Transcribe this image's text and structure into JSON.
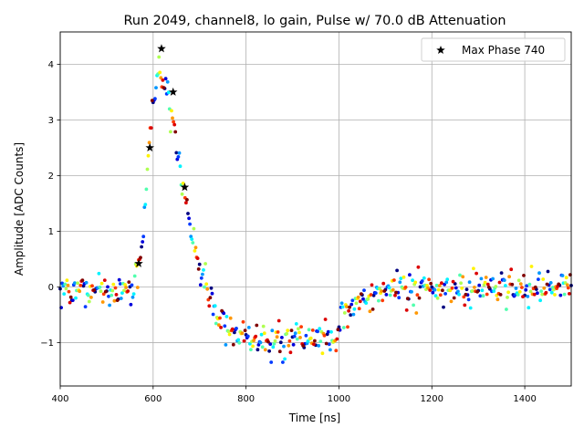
{
  "chart_data": {
    "type": "scatter",
    "title": "Run 2049, channel8, lo gain, Pulse w/ 70.0 dB Attenuation",
    "xlabel": "Time [ns]",
    "ylabel": "Amplitude [ADC Counts]",
    "xlim": [
      400,
      1500
    ],
    "ylim": [
      -1.78,
      4.58
    ],
    "x_ticks": [
      400,
      600,
      800,
      1000,
      1200,
      1400
    ],
    "y_ticks": [
      -1,
      0,
      1,
      2,
      3,
      4
    ],
    "x_tick_labels": [
      "400",
      "600",
      "800",
      "1000",
      "1200",
      "1400"
    ],
    "y_tick_labels": [
      "−1",
      "0",
      "1",
      "2",
      "3",
      "4"
    ],
    "grid": true,
    "colormap": "jet",
    "legend": {
      "position": "top-right",
      "entries": [
        {
          "label": "Max Phase 740",
          "marker": "star",
          "color": "#000000"
        }
      ]
    },
    "max_phase_points": {
      "name": "Max Phase 740",
      "x": [
        569,
        593,
        618,
        643,
        668
      ],
      "y": [
        0.42,
        2.5,
        4.28,
        3.5,
        1.79
      ]
    },
    "waveform": {
      "description_points_x": [
        400,
        540,
        560,
        570,
        580,
        590,
        600,
        610,
        620,
        630,
        640,
        650,
        660,
        670,
        680,
        690,
        700,
        720,
        740,
        760,
        780,
        800,
        850,
        900,
        950,
        990,
        1000,
        1020,
        1040,
        1060,
        1080,
        1100,
        1150,
        1200,
        1300,
        1400,
        1500
      ],
      "description_points_y": [
        0.0,
        -0.1,
        0.0,
        0.35,
        1.1,
        2.3,
        3.2,
        3.8,
        3.75,
        3.5,
        3.0,
        2.5,
        2.0,
        1.6,
        1.2,
        0.75,
        0.35,
        -0.2,
        -0.55,
        -0.75,
        -0.85,
        -0.9,
        -0.95,
        -0.98,
        -0.95,
        -0.9,
        -0.65,
        -0.45,
        -0.3,
        -0.2,
        -0.12,
        -0.06,
        -0.02,
        0.0,
        0.0,
        0.0,
        0.0
      ],
      "samples_per_phase": 44,
      "phases": 12,
      "noise_sigma": 0.15
    }
  }
}
